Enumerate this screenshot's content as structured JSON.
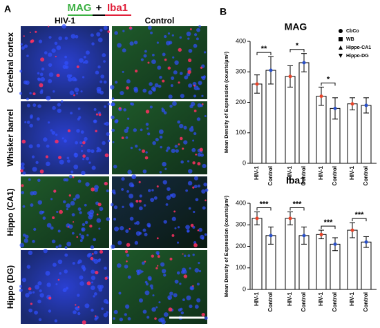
{
  "panel_a": {
    "letter": "A",
    "header": [
      "MAG",
      "+",
      "Iba1"
    ],
    "columns": [
      "HIV-1",
      "Control"
    ],
    "rows": [
      "Cerebral cortex",
      "Whisker barrel",
      "Hippo (CA1)",
      "Hippo (DG)"
    ]
  },
  "panel_b": {
    "letter": "B"
  },
  "chart_data": [
    {
      "type": "bar",
      "title": "MAG",
      "ylabel": "Mean Density of Expression (counts/µm²)",
      "categories": [
        "HIV-1",
        "Control",
        "HIV-1",
        "Control",
        "HIV-1",
        "Control",
        "HIV-1",
        "Control"
      ],
      "values": [
        260,
        305,
        285,
        330,
        220,
        180,
        195,
        190
      ],
      "errors": [
        30,
        45,
        35,
        30,
        30,
        35,
        20,
        25
      ],
      "colors": [
        "#e8442a",
        "#2a50c8",
        "#e8442a",
        "#2a50c8",
        "#e8442a",
        "#2a50c8",
        "#e8442a",
        "#2a50c8"
      ],
      "significance": [
        "**",
        "*",
        "*",
        null
      ],
      "legend": [
        "CbCo",
        "WB",
        "Hippo-CA1",
        "Hippo-DG"
      ],
      "ylim": [
        0,
        400
      ],
      "yticks": [
        0,
        100,
        200,
        300,
        400
      ]
    },
    {
      "type": "bar",
      "title": "Iba1",
      "ylabel": "Mean Density of Expression (counts/µm²)",
      "categories": [
        "HIV-1",
        "Control",
        "HIV-1",
        "Control",
        "HIV-1",
        "Control",
        "HIV-1",
        "Control"
      ],
      "values": [
        330,
        250,
        330,
        250,
        255,
        210,
        275,
        220
      ],
      "errors": [
        30,
        40,
        30,
        40,
        20,
        30,
        35,
        25
      ],
      "colors": [
        "#e8442a",
        "#2a50c8",
        "#e8442a",
        "#2a50c8",
        "#e8442a",
        "#2a50c8",
        "#e8442a",
        "#2a50c8"
      ],
      "significance": [
        "***",
        "***",
        "***",
        "***"
      ],
      "ylim": [
        0,
        400
      ],
      "yticks": [
        0,
        100,
        200,
        300,
        400
      ]
    }
  ]
}
